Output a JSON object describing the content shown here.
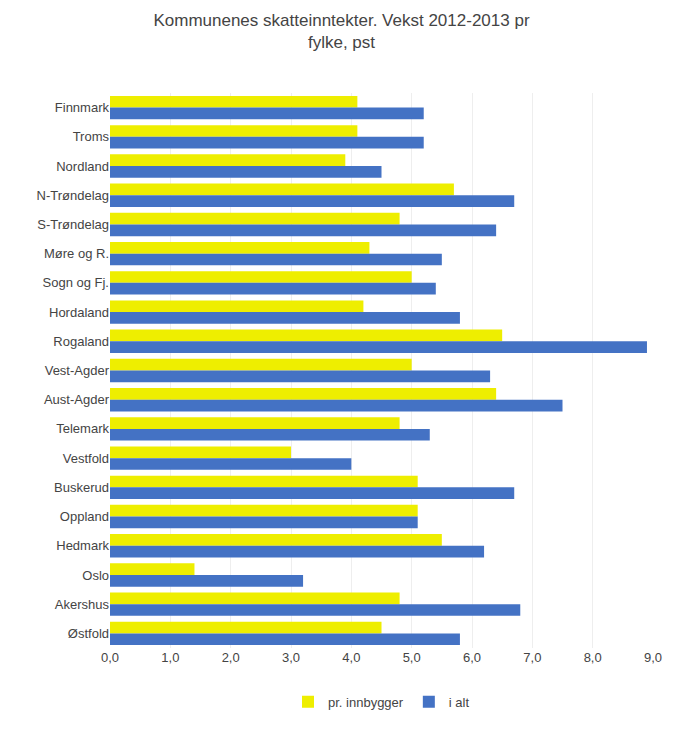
{
  "chart_data": {
    "type": "bar",
    "orientation": "horizontal",
    "title": "Kommunenes skatteinntekter. Vekst 2012-2013 pr\nfylke, pst",
    "categories": [
      "Finnmark",
      "Troms",
      "Nordland",
      "N-Trøndelag",
      "S-Trøndelag",
      "Møre og R.",
      "Sogn og Fj.",
      "Hordaland",
      "Rogaland",
      "Vest-Agder",
      "Aust-Agder",
      "Telemark",
      "Vestfold",
      "Buskerud",
      "Oppland",
      "Hedmark",
      "Oslo",
      "Akershus",
      "Østfold"
    ],
    "series": [
      {
        "name": "pr. innbygger",
        "color": "#eeee00",
        "values": [
          4.1,
          4.1,
          3.9,
          5.7,
          4.8,
          4.3,
          5.0,
          4.2,
          6.5,
          5.0,
          6.4,
          4.8,
          3.0,
          5.1,
          5.1,
          5.5,
          1.4,
          4.8,
          4.5
        ]
      },
      {
        "name": "i alt",
        "color": "#4472c4",
        "values": [
          5.2,
          5.2,
          4.5,
          6.7,
          6.4,
          5.5,
          5.4,
          5.8,
          8.9,
          6.3,
          7.5,
          5.3,
          4.0,
          6.7,
          5.1,
          6.2,
          3.2,
          6.8,
          5.8
        ]
      }
    ],
    "xlim": [
      0,
      9.0
    ],
    "xticks": [
      {
        "value": 0.0,
        "label": "0,0"
      },
      {
        "value": 1.0,
        "label": "1,0"
      },
      {
        "value": 2.0,
        "label": "2,0"
      },
      {
        "value": 3.0,
        "label": "3,0"
      },
      {
        "value": 4.0,
        "label": "4,0"
      },
      {
        "value": 5.0,
        "label": "5,0"
      },
      {
        "value": 6.0,
        "label": "6,0"
      },
      {
        "value": 7.0,
        "label": "7,0"
      },
      {
        "value": 8.0,
        "label": "8,0"
      },
      {
        "value": 9.0,
        "label": "9,0"
      }
    ],
    "grid": true,
    "legend": "lower center"
  }
}
